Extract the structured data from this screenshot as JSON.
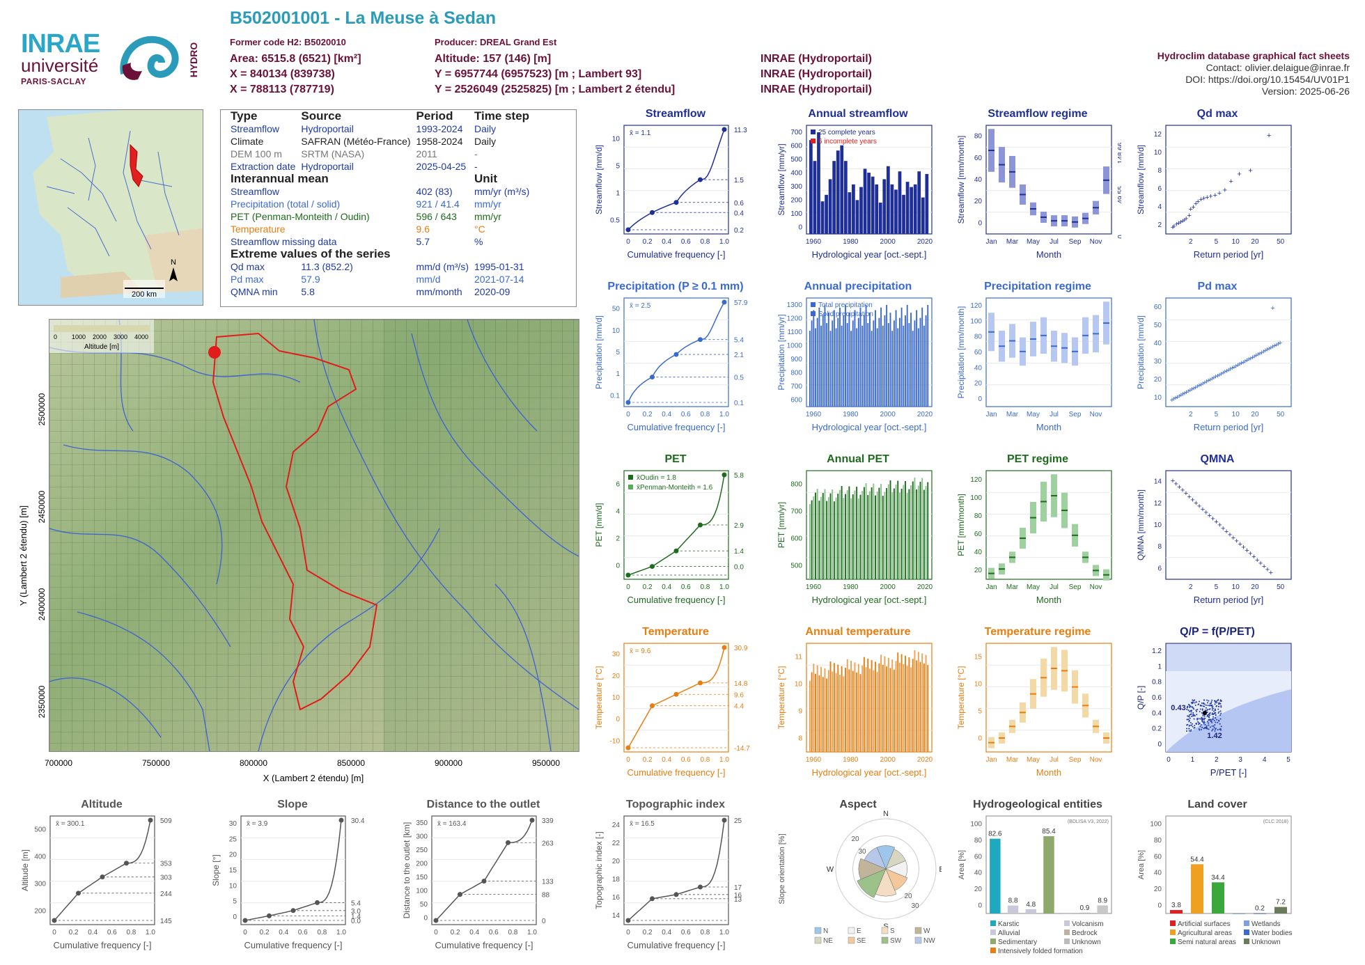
{
  "header": {
    "title": "B502001001 - La Meuse à Sedan",
    "former_code": "Former code H2: B5020010",
    "producer": "Producer: DREAL Grand Est",
    "area": "Area: 6515.8 (6521) [km²]",
    "altitude": "Altitude: 157 (146) [m]",
    "x93": "X = 840134 (839738)",
    "y93": "Y = 6957744 (6957523) [m ; Lambert 93]",
    "x2": "X = 788113 (787719)",
    "y2": "Y = 2526049 (2525825) [m ; Lambert 2 étendu]",
    "src1": "INRAE (Hydroportail)",
    "src2": "INRAE (Hydroportail)",
    "src3": "INRAE (Hydroportail)"
  },
  "logos": {
    "inrae": "INRAE",
    "universite": "université",
    "paris_saclay": "PARIS-SACLAY",
    "hydro": "HYDRO"
  },
  "right_info": {
    "heading": "Hydroclim database graphical fact sheets",
    "contact": "Contact: olivier.delaigue@inrae.fr",
    "doi": "DOI: https://doi.org/10.15454/UV01P1",
    "version": "Version: 2025-06-26"
  },
  "info_table": {
    "head": [
      "Type",
      "Source",
      "Period",
      "Time step"
    ],
    "rows": [
      {
        "a": "Streamflow",
        "b": "Hydroportail",
        "c": "1993-2024",
        "d": "Daily",
        "color": "#1f3aa8"
      },
      {
        "a": "Climate",
        "b": "SAFRAN (Météo-France)",
        "c": "1958-2024",
        "d": "Daily",
        "color": "#222"
      },
      {
        "a": "DEM 100 m",
        "b": "SRTM (NASA)",
        "c": "2011",
        "d": "-",
        "color": "#777"
      },
      {
        "a": "Extraction date",
        "b": "Hydroportail",
        "c": "2025-04-25",
        "d": "-",
        "color": "#1f3aa8"
      }
    ],
    "mean_head": "Interannual mean",
    "unit_head": "Unit",
    "means": [
      {
        "a": "Streamflow",
        "v": "402 (83)",
        "u": "mm/yr (m³/s)",
        "color": "#1f3aa8"
      },
      {
        "a": "Precipitation (total / solid)",
        "v": "921 / 41.4",
        "u": "mm/yr",
        "color": "#3a6ad0"
      },
      {
        "a": "PET (Penman-Monteith / Oudin)",
        "v": "596 / 643",
        "u": "mm/yr",
        "color": "#1d6b1d"
      },
      {
        "a": "Temperature",
        "v": "9.6",
        "u": "°C",
        "color": "#e87d10"
      },
      {
        "a": "Streamflow missing data",
        "v": "5.7",
        "u": "%",
        "color": "#1f3aa8"
      }
    ],
    "extreme_head": "Extreme values of the series",
    "extremes": [
      {
        "a": "Qd max",
        "v": "11.3 (852.2)",
        "u": "mm/d (m³/s)",
        "d": "1995-01-31",
        "color": "#1f3aa8"
      },
      {
        "a": "Pd max",
        "v": "57.9",
        "u": "mm/d",
        "d": "2021-07-14",
        "color": "#3a6ad0"
      },
      {
        "a": "QMNA min",
        "v": "5.8",
        "u": "mm/month",
        "d": "2020-09",
        "color": "#1f3aa8"
      }
    ]
  },
  "minimap": {
    "scale": "200 km",
    "north": "N"
  },
  "bigmap": {
    "legend_title": "Altitude [m]",
    "legend_ticks": [
      "0",
      "1000",
      "2000",
      "3000",
      "4000"
    ],
    "xlabel": "X (Lambert 2 étendu) [m]",
    "ylabel": "Y (Lambert 2 étendu) [m]",
    "xticks": [
      "700000",
      "750000",
      "800000",
      "850000",
      "900000",
      "950000"
    ],
    "yticks": [
      "2500000",
      "2450000",
      "2400000",
      "2350000"
    ]
  },
  "colors": {
    "streamflow": "#1f2f9a",
    "precip": "#3a6ad0",
    "pet": "#1d6b1d",
    "temp": "#e87d10",
    "topo": "#555555",
    "title_blue": "#2a9bb8",
    "wine": "#6b1038"
  },
  "chart_data": [
    {
      "id": "streamflow_fdc",
      "type": "line",
      "title": "Streamflow",
      "xlabel": "Cumulative frequency [-]",
      "ylabel": "Streamflow [mm/d]",
      "x": [
        0,
        0.25,
        0.5,
        0.75,
        1
      ],
      "y": [
        0.2,
        0.4,
        0.6,
        1.5,
        11.3
      ],
      "mean_label": "x̄ = 1.1",
      "right_ticks": [
        "11.3",
        "1.5",
        "0.6",
        "0.4",
        "0.2"
      ],
      "yticks": [
        "0.5",
        "1",
        "5",
        "10"
      ]
    },
    {
      "id": "annual_streamflow",
      "type": "bar",
      "title": "Annual streamflow",
      "xlabel": "Hydrological year [oct.-sept.]",
      "ylabel": "Streamflow [mm/yr]",
      "legend": [
        "25 complete years",
        "6 incomplete years"
      ],
      "xticks": [
        "1960",
        "1980",
        "2000",
        "2020"
      ],
      "yticks": [
        "0",
        "100",
        "200",
        "300",
        "400",
        "500",
        "600",
        "700"
      ],
      "years": [
        1993,
        1994,
        1995,
        1996,
        1997,
        1998,
        1999,
        2000,
        2001,
        2002,
        2003,
        2004,
        2005,
        2006,
        2007,
        2008,
        2009,
        2010,
        2011,
        2012,
        2013,
        2014,
        2015,
        2016,
        2017,
        2018,
        2019,
        2020,
        2021,
        2022,
        2023
      ],
      "values": [
        720,
        560,
        780,
        250,
        300,
        420,
        560,
        640,
        680,
        560,
        320,
        380,
        260,
        360,
        500,
        470,
        440,
        380,
        240,
        420,
        520,
        380,
        340,
        480,
        300,
        400,
        360,
        380,
        480,
        280,
        460
      ]
    },
    {
      "id": "streamflow_regime",
      "type": "bar",
      "title": "Streamflow regime",
      "xlabel": "Month",
      "ylabel": "Streamflow [mm/month]",
      "categories": [
        "Jan",
        "Feb",
        "Mar",
        "Apr",
        "May",
        "Jun",
        "Jul",
        "Aug",
        "Sep",
        "Oct",
        "Nov",
        "Dec"
      ],
      "xticks": [
        "Jan",
        "Mar",
        "May",
        "Jul",
        "Sep",
        "Nov"
      ],
      "values": [
        70,
        58,
        52,
        33,
        21,
        14,
        11,
        11,
        10,
        13,
        22,
        45
      ],
      "right_ticks": [
        "148.66",
        "49.55",
        "0"
      ],
      "yticks": [
        "0",
        "20",
        "40",
        "60",
        "80"
      ]
    },
    {
      "id": "qd_max",
      "type": "scatter",
      "title": "Qd max",
      "xlabel": "Return period [yr]",
      "ylabel": "Streamflow [mm/d]",
      "xticks": [
        "2",
        "5",
        "10",
        "20",
        "50"
      ],
      "yticks": [
        "2",
        "4",
        "6",
        "8",
        "10",
        "12"
      ],
      "x": [
        1.05,
        1.1,
        1.2,
        1.3,
        1.4,
        1.5,
        1.6,
        1.7,
        1.9,
        2.0,
        2.2,
        2.4,
        2.6,
        2.9,
        3.2,
        3.6,
        4.1,
        4.8,
        5.6,
        6.8,
        8.5,
        11.4,
        17,
        33
      ],
      "y": [
        2.7,
        2.8,
        3.0,
        3.1,
        3.2,
        3.3,
        3.4,
        3.5,
        3.8,
        4.4,
        4.6,
        4.9,
        5.1,
        5.3,
        5.4,
        5.5,
        5.6,
        5.7,
        5.9,
        6.2,
        7.0,
        7.7,
        8.0,
        11.3
      ]
    },
    {
      "id": "precip_fdc",
      "type": "line",
      "title": "Precipitation (P ≥ 0.1 mm)",
      "xlabel": "Cumulative frequency [-]",
      "ylabel": "Precipitation [mm/d]",
      "x": [
        0,
        0.25,
        0.5,
        0.75,
        1
      ],
      "y": [
        0.1,
        0.5,
        2.1,
        5.4,
        57.9
      ],
      "mean_label": "x̄ = 2.5",
      "right_ticks": [
        "57.9",
        "5.4",
        "2.1",
        "0.5",
        "0.1"
      ],
      "yticks": [
        "0.1",
        "1",
        "5",
        "10",
        "50"
      ]
    },
    {
      "id": "annual_precip",
      "type": "bar",
      "title": "Annual precipitation",
      "xlabel": "Hydrological year [oct.-sept.]",
      "ylabel": "Precipitation [mm/yr]",
      "legend": [
        "Total precipitation",
        "Solid precipitation"
      ],
      "xticks": [
        "1960",
        "1980",
        "2000",
        "2020"
      ],
      "yticks": [
        "600",
        "700",
        "800",
        "900",
        "1000",
        "1100",
        "1200",
        "1300"
      ]
    },
    {
      "id": "precip_regime",
      "type": "bar",
      "title": "Precipitation regime",
      "xlabel": "Month",
      "ylabel": "Precipitation [mm/month]",
      "categories": [
        "Jan",
        "Feb",
        "Mar",
        "Apr",
        "May",
        "Jun",
        "Jul",
        "Aug",
        "Sep",
        "Oct",
        "Nov",
        "Dec"
      ],
      "xticks": [
        "Jan",
        "Mar",
        "May",
        "Jul",
        "Sep",
        "Nov"
      ],
      "values": [
        84,
        68,
        74,
        62,
        76,
        80,
        68,
        66,
        62,
        80,
        82,
        94
      ],
      "yticks": [
        "0",
        "20",
        "40",
        "60",
        "80",
        "100",
        "120"
      ]
    },
    {
      "id": "pd_max",
      "type": "scatter",
      "title": "Pd max",
      "xlabel": "Return period [yr]",
      "ylabel": "Precipitation [mm/d]",
      "xticks": [
        "2",
        "5",
        "10",
        "20",
        "50"
      ],
      "yticks": [
        "10",
        "20",
        "30",
        "40",
        "50",
        "60"
      ],
      "ymax": 57.9
    },
    {
      "id": "pet_fdc",
      "type": "line",
      "title": "PET",
      "xlabel": "Cumulative frequency [-]",
      "ylabel": "PET [mm/d]",
      "x": [
        0,
        0.25,
        0.5,
        0.75,
        1
      ],
      "y": [
        0.0,
        0.5,
        1.4,
        2.9,
        5.8
      ],
      "legend": [
        "x̄Oudin = 1.8",
        "x̄Penman-Monteith = 1.6"
      ],
      "right_ticks": [
        "5.8",
        "2.9",
        "1.4",
        "0.0"
      ],
      "yticks": [
        "0",
        "2",
        "4",
        "6"
      ]
    },
    {
      "id": "annual_pet",
      "type": "bar",
      "title": "Annual PET",
      "xlabel": "Hydrological year [oct.-sept.]",
      "ylabel": "PET [mm/yr]",
      "xticks": [
        "1960",
        "1980",
        "2000",
        "2020"
      ],
      "yticks": [
        "500",
        "600",
        "700",
        "800"
      ]
    },
    {
      "id": "pet_regime",
      "type": "bar",
      "title": "PET regime",
      "xlabel": "Month",
      "ylabel": "PET [mm/month]",
      "categories": [
        "Jan",
        "Feb",
        "Mar",
        "Apr",
        "May",
        "Jun",
        "Jul",
        "Aug",
        "Sep",
        "Oct",
        "Nov",
        "Dec"
      ],
      "xticks": [
        "Jan",
        "Mar",
        "May",
        "Jul",
        "Sep",
        "Nov"
      ],
      "values": [
        8,
        14,
        30,
        56,
        84,
        106,
        114,
        94,
        60,
        30,
        12,
        6
      ],
      "yticks": [
        "20",
        "40",
        "60",
        "80",
        "100",
        "120"
      ]
    },
    {
      "id": "qmna",
      "type": "scatter",
      "title": "QMNA",
      "xlabel": "Return period [yr]",
      "ylabel": "QMNA [mm/month]",
      "xticks": [
        "2",
        "5",
        "10",
        "20",
        "50"
      ],
      "yticks": [
        "6",
        "8",
        "10",
        "12",
        "14"
      ]
    },
    {
      "id": "temp_fdc",
      "type": "line",
      "title": "Temperature",
      "xlabel": "Cumulative frequency [-]",
      "ylabel": "Temperature [°C]",
      "x": [
        0,
        0.25,
        0.5,
        0.75,
        1
      ],
      "y": [
        -14.7,
        4.4,
        9.6,
        14.8,
        30.9
      ],
      "mean_label": "x̄ = 9.6",
      "right_ticks": [
        "30.9",
        "14.8",
        "9.6",
        "4.4",
        "-14.7"
      ],
      "yticks": [
        "-10",
        "0",
        "10",
        "20",
        "30"
      ]
    },
    {
      "id": "annual_temp",
      "type": "bar",
      "title": "Annual temperature",
      "xlabel": "Hydrological year [oct.-sept.]",
      "ylabel": "Temperature [°C]",
      "xticks": [
        "1960",
        "1980",
        "2000",
        "2020"
      ],
      "yticks": [
        "8",
        "9",
        "10",
        "11"
      ]
    },
    {
      "id": "temp_regime",
      "type": "bar",
      "title": "Temperature regime",
      "xlabel": "Month",
      "ylabel": "Temperature [°C]",
      "categories": [
        "Jan",
        "Feb",
        "Mar",
        "Apr",
        "May",
        "Jun",
        "Jul",
        "Aug",
        "Sep",
        "Oct",
        "Nov",
        "Dec"
      ],
      "xticks": [
        "Jan",
        "Mar",
        "May",
        "Jul",
        "Sep",
        "Nov"
      ],
      "values": [
        2,
        3,
        5.5,
        8.5,
        12.5,
        16,
        18,
        17.5,
        14,
        10,
        5.5,
        3
      ],
      "yticks": [
        "0",
        "5",
        "10",
        "15"
      ]
    },
    {
      "id": "qp_ppet",
      "type": "scatter",
      "title": "Q/P = f(P/PET)",
      "xlabel": "P/PET [-]",
      "ylabel": "Q/P [-]",
      "labels": [
        "0.43",
        "1.42"
      ],
      "xticks": [
        "0",
        "1",
        "2",
        "3",
        "4",
        "5"
      ],
      "yticks": [
        "0",
        "0.2",
        "0.4",
        "0.6",
        "0.8",
        "1",
        "1.2"
      ]
    },
    {
      "id": "altitude",
      "type": "line",
      "title": "Altitude",
      "xlabel": "Cumulative frequency [-]",
      "ylabel": "Altitude [m]",
      "x": [
        0,
        0.25,
        0.5,
        0.75,
        1
      ],
      "y": [
        145,
        244,
        303,
        353,
        509
      ],
      "mean_label": "x̄ = 300.1",
      "right_ticks": [
        "509",
        "353",
        "303",
        "244",
        "145"
      ],
      "yticks": [
        "200",
        "300",
        "400",
        "500"
      ]
    },
    {
      "id": "slope",
      "type": "line",
      "title": "Slope",
      "xlabel": "Cumulative frequency [-]",
      "ylabel": "Slope [°]",
      "x": [
        0,
        0.25,
        0.5,
        0.75,
        1
      ],
      "y": [
        0,
        1.4,
        3.0,
        5.4,
        30.4
      ],
      "mean_label": "x̄ = 3.9",
      "right_ticks": [
        "30.4",
        "5.4",
        "3.0",
        "1.4",
        "0.0"
      ],
      "yticks": [
        "0",
        "5",
        "10",
        "15",
        "20",
        "25",
        "30"
      ]
    },
    {
      "id": "distance",
      "type": "line",
      "title": "Distance to the outlet",
      "xlabel": "Cumulative frequency [-]",
      "ylabel": "Distance to the outlet [km]",
      "x": [
        0,
        0.25,
        0.5,
        0.75,
        1
      ],
      "y": [
        0,
        88,
        133,
        263,
        339
      ],
      "mean_label": "x̄ = 163.4",
      "right_ticks": [
        "339",
        "263",
        "133",
        "88",
        "0"
      ],
      "yticks": [
        "0",
        "50",
        "100",
        "150",
        "200",
        "250",
        "300",
        "350"
      ]
    },
    {
      "id": "topo_index",
      "type": "line",
      "title": "Topographic index",
      "xlabel": "Cumulative frequency [-]",
      "ylabel": "Topographic index [-]",
      "x": [
        0,
        0.25,
        0.5,
        0.75,
        1
      ],
      "y": [
        13,
        15.6,
        16.1,
        17,
        25
      ],
      "mean_label": "x̄ = 16.5",
      "right_ticks": [
        "25",
        "17",
        "16",
        "13"
      ],
      "yticks": [
        "14",
        "16",
        "18",
        "20",
        "22",
        "24"
      ]
    },
    {
      "id": "aspect",
      "type": "pie",
      "title": "Aspect",
      "ylabel": "Slope orientation [%]",
      "categories": [
        "N",
        "NE",
        "E",
        "SE",
        "S",
        "SW",
        "W",
        "NW"
      ],
      "values": [
        12,
        11,
        11,
        12,
        14,
        16,
        14,
        12
      ],
      "directions": [
        "N",
        "E",
        "S",
        "W"
      ],
      "ring_labels": [
        "20",
        "30",
        "20",
        "30"
      ]
    },
    {
      "id": "hydrogeology",
      "type": "bar",
      "title": "Hydrogeological entities",
      "ylabel": "Area [%]",
      "note": "(BDLISA V3, 2022)",
      "categories": [
        "Karstic",
        "Alluvial",
        "Sedimentary",
        "Intensively folded formation",
        "Volcanism",
        "Bedrock",
        "Unknown"
      ],
      "values": [
        82.6,
        8.8,
        4.8,
        85.4,
        0,
        0.9,
        8.9
      ],
      "labels": [
        "82.6",
        "8.8",
        "4.8",
        "85.4",
        "0.9",
        "8.9"
      ],
      "yticks": [
        "0",
        "20",
        "40",
        "60",
        "80",
        "100"
      ]
    },
    {
      "id": "land_cover",
      "type": "bar",
      "title": "Land cover",
      "ylabel": "Area [%]",
      "note": "(CLC 2018)",
      "categories": [
        "Artificial surfaces",
        "Agricultural areas",
        "Semi natural areas",
        "Wetlands",
        "Water bodies",
        "Unknown"
      ],
      "values": [
        3.8,
        54.4,
        34.4,
        0,
        0.2,
        7.2
      ],
      "labels": [
        "3.8",
        "54.4",
        "34.4",
        "0.2",
        "7.2"
      ],
      "yticks": [
        "0",
        "20",
        "40",
        "60",
        "80",
        "100"
      ]
    }
  ]
}
